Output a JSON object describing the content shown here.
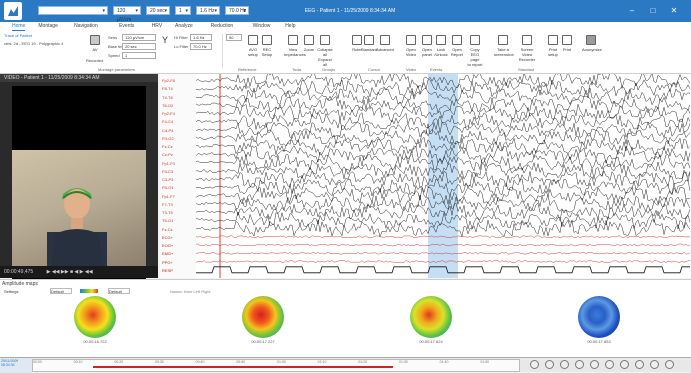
{
  "titlebar": {
    "title": "EEG - Patient 1 - 11/25/2009 8:34:34 AM",
    "quick_access": [
      {
        "value": "",
        "w": 70
      },
      {
        "value": "120 µV/cm",
        "w": 28
      },
      {
        "value": "20 sec",
        "w": 24
      },
      {
        "value": "1",
        "w": 16
      },
      {
        "value": "1.6 Hz",
        "w": 24
      },
      {
        "value": "70.0 Hz",
        "w": 24
      }
    ],
    "buttons": [
      "–",
      "□",
      "✕"
    ]
  },
  "menu": {
    "tabs": [
      "Home",
      "Montage",
      "Navigation",
      "Events",
      "HRV",
      "Analyze",
      "Reduction",
      "Window",
      "Help"
    ],
    "active": "Home"
  },
  "ribbon": {
    "patient": "Patient 1",
    "patient_sub": "Trace of Patient",
    "record": "ctrls: 2d - EEG 19 - Polygraphic 4",
    "montage_btn": "AV",
    "montage_sub": "Recorded",
    "sens_label": "Sens",
    "sens_value": "120 µV/cm",
    "sens_extra": "Lo Filter",
    "base_label": "Base time",
    "base_value": "20 sec",
    "speed_label": "Speed",
    "speed_value": "1",
    "hi_label": "Hi Filter",
    "hi_value": "1.6 Hz",
    "lo_label": "Lo Filter",
    "lo_value": "70.0 Hz",
    "notch_value": "50",
    "group_montage": "Montage parameters",
    "group_reference": "Reference",
    "group_tools": "Tools",
    "group_groups": "Groups",
    "group_cursor": "Cursor",
    "group_video": "Video",
    "group_events": "Events",
    "group_standard": "Standard",
    "buttons": [
      {
        "label": "AVG\nsetup",
        "icon": "avg-icon"
      },
      {
        "label": "REC\nSetup",
        "icon": "rec-icon"
      },
      {
        "label": "View\nImpedances",
        "icon": "impedance-icon"
      },
      {
        "label": "Zoom",
        "icon": "zoom-icon"
      },
      {
        "label": "Collapse all\nExpand all",
        "icon": "collapse-icon"
      },
      {
        "label": "Ruler",
        "icon": "ruler-icon"
      },
      {
        "label": "Standard",
        "icon": "standard-icon"
      },
      {
        "label": "Advanced",
        "icon": "advanced-icon"
      },
      {
        "label": "Open\nVideo",
        "icon": "video-icon"
      },
      {
        "label": "Open\npanel",
        "icon": "panel-icon"
      },
      {
        "label": "Lock\n/Unlock",
        "icon": "lock-icon"
      },
      {
        "label": "Open\nReport",
        "icon": "report-icon"
      },
      {
        "label": "Copy EEG page\nto report",
        "icon": "copy-icon"
      },
      {
        "label": "Take a\nscreenshot",
        "icon": "camera-icon"
      },
      {
        "label": "Screen Video\nRecorder",
        "icon": "recorder-icon"
      },
      {
        "label": "Print\nsetup",
        "icon": "print-setup-icon"
      },
      {
        "label": "Print",
        "icon": "print-icon"
      },
      {
        "label": "Anonymize",
        "icon": "anonymize-icon"
      }
    ]
  },
  "video": {
    "title": "VIDEO - Patient 1 - 11/25/2009 8:34:34 AM",
    "time": "00:00:49,475"
  },
  "channels": [
    "Fp2-F8",
    "F8-T4",
    "T4-T6",
    "T6-O2",
    "Fp2-F4",
    "F4-C4",
    "C4-P4",
    "P4-O2",
    "Fz-Cz",
    "Cz-Pz",
    "Fp1-F3",
    "F3-C3",
    "C3-P3",
    "P3-O1",
    "Fp1-F7",
    "F7-T3",
    "T3-T5",
    "T5-O1",
    "Fz-Cz",
    "ECG+",
    "EOG+",
    "EMG+",
    "PPG+",
    "RESP"
  ],
  "amplitude": {
    "title": "Amplitude maps",
    "settings": "Settings",
    "controls": [
      "Default",
      "Default"
    ],
    "legend": "Nasion Inion Left Right",
    "maps": [
      {
        "time": "00:00:16.722",
        "colors": [
          "#e83a1e",
          "#f29b1c",
          "#f4e01d",
          "#5fc43b",
          "#2a7bd6"
        ]
      },
      {
        "time": "00:00:17.227",
        "colors": [
          "#d81e1e",
          "#f05a1e",
          "#f2c61d",
          "#63c33d",
          "#2d6fd8"
        ]
      },
      {
        "time": "00:00:17.624",
        "colors": [
          "#e03a1c",
          "#f1a81b",
          "#d8e22a",
          "#58c244",
          "#2774d4"
        ]
      },
      {
        "time": "00:00:17.853",
        "colors": [
          "#3a7dd8",
          "#2a5fc9",
          "#5b9ae0",
          "#1f4ec0",
          "#173f9e"
        ]
      }
    ]
  },
  "timeline": {
    "date": "25/11/2009",
    "time": "08:34:34",
    "ticks": [
      "00:00",
      "00:10",
      "00:20",
      "00:30",
      "00:40",
      "00:50",
      "01:00",
      "01:10",
      "01:20",
      "01:30",
      "01:40",
      "01:50"
    ]
  }
}
